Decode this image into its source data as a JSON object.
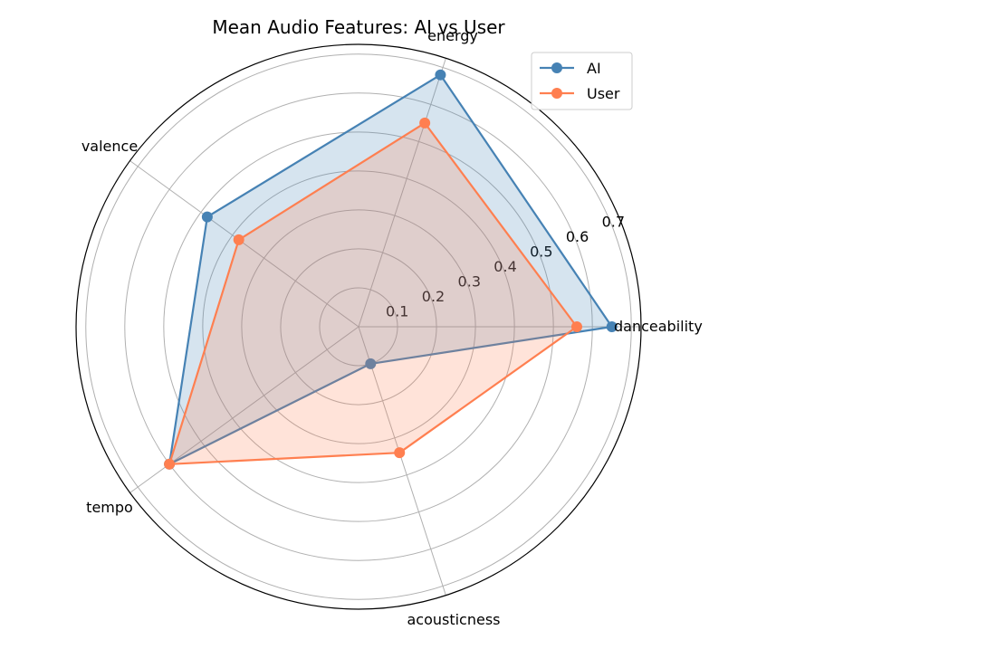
{
  "chart_data": {
    "type": "radar",
    "title": "Mean Audio Features: AI vs User",
    "categories": [
      "danceability",
      "energy",
      "valence",
      "tempo",
      "acousticness"
    ],
    "rticks": [
      0.1,
      0.2,
      0.3,
      0.4,
      0.5,
      0.6,
      0.7
    ],
    "rtick_labels": [
      "0.1",
      "0.2",
      "0.3",
      "0.4",
      "0.5",
      "0.6",
      "0.7"
    ],
    "rlim": [
      0,
      0.725
    ],
    "grid": true,
    "legend_position": "top-right",
    "series": [
      {
        "name": "AI",
        "color": "#4682b4",
        "values": [
          0.65,
          0.68,
          0.48,
          0.6,
          0.1
        ]
      },
      {
        "name": "User",
        "color": "#ff7f50",
        "values": [
          0.56,
          0.55,
          0.38,
          0.6,
          0.34
        ]
      }
    ]
  }
}
